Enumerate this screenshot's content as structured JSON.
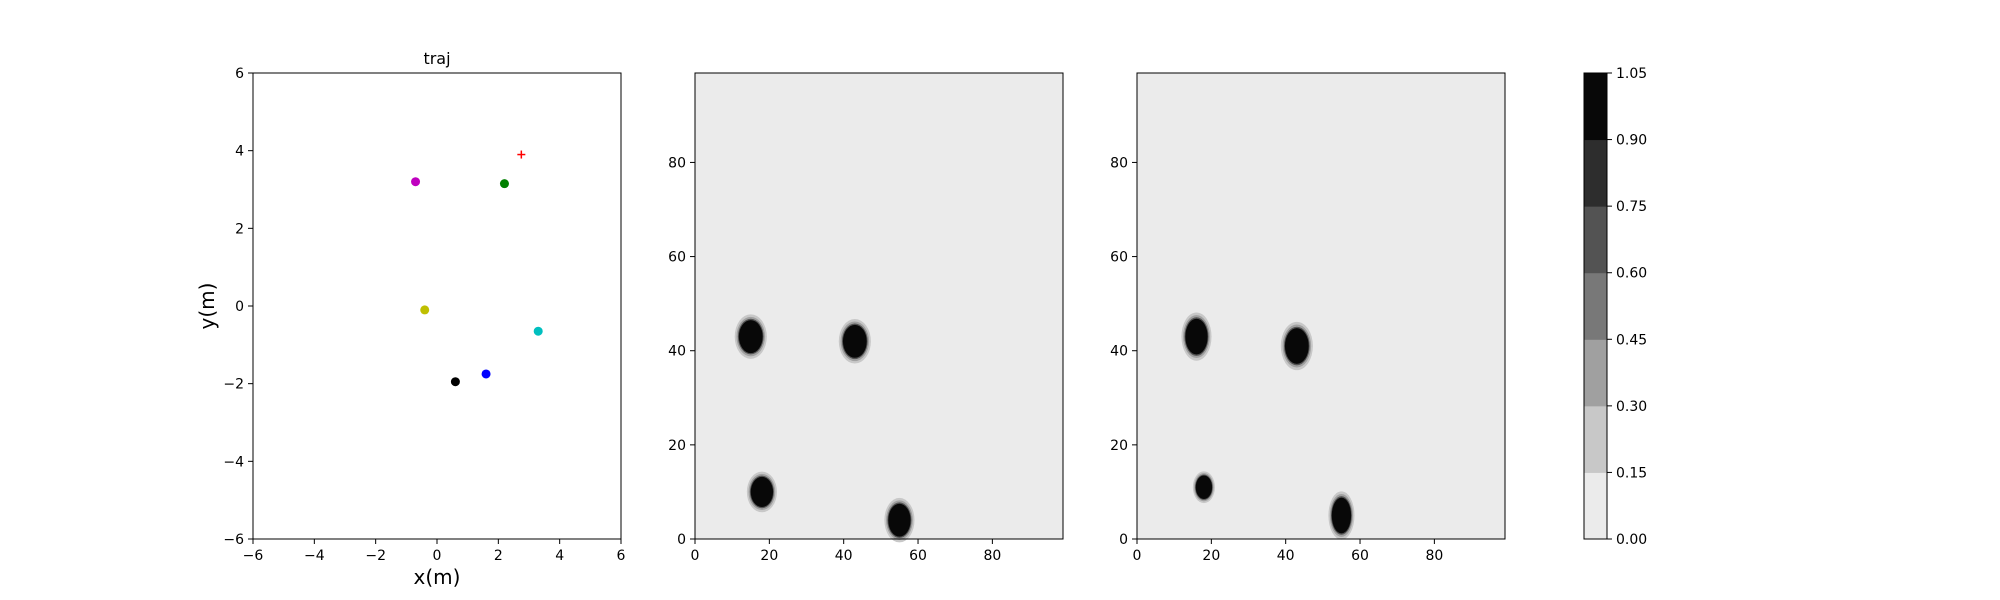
{
  "chart_data": [
    {
      "type": "scatter",
      "title": "traj",
      "xlabel": "x(m)",
      "ylabel": "y(m)",
      "xlim": [
        -6,
        6
      ],
      "ylim": [
        -6,
        6
      ],
      "xticks": [
        "−6",
        "−4",
        "−2",
        "0",
        "2",
        "4",
        "6"
      ],
      "yticks": [
        "−6",
        "−4",
        "−2",
        "0",
        "2",
        "4",
        "6"
      ],
      "grid": false,
      "points": [
        {
          "x": -0.7,
          "y": 3.2,
          "color": "#bf00bf",
          "marker": "circle"
        },
        {
          "x": 2.2,
          "y": 3.15,
          "color": "#008000",
          "marker": "circle"
        },
        {
          "x": -0.4,
          "y": -0.1,
          "color": "#bfbf00",
          "marker": "circle"
        },
        {
          "x": 3.3,
          "y": -0.65,
          "color": "#00bfbf",
          "marker": "circle"
        },
        {
          "x": 1.6,
          "y": -1.75,
          "color": "#0000ff",
          "marker": "circle"
        },
        {
          "x": 0.6,
          "y": -1.95,
          "color": "#000000",
          "marker": "circle"
        },
        {
          "x": 2.75,
          "y": 3.9,
          "color": "#ff0000",
          "marker": "plus"
        }
      ]
    },
    {
      "type": "heatmap",
      "xlim": [
        0,
        99
      ],
      "ylim": [
        0,
        99
      ],
      "xticks": [
        "0",
        "20",
        "40",
        "60",
        "80"
      ],
      "yticks": [
        "0",
        "20",
        "40",
        "60",
        "80"
      ],
      "background_value": 0.08,
      "blobs": [
        {
          "cx": 15,
          "cy": 43,
          "rx": 3.2,
          "ry": 3.5,
          "value": 1.0
        },
        {
          "cx": 43,
          "cy": 42,
          "rx": 3.2,
          "ry": 3.5,
          "value": 1.0
        },
        {
          "cx": 18,
          "cy": 10,
          "rx": 3.0,
          "ry": 3.2,
          "value": 1.0
        },
        {
          "cx": 55,
          "cy": 4,
          "rx": 3.0,
          "ry": 3.5,
          "value": 1.0
        }
      ]
    },
    {
      "type": "heatmap",
      "xlim": [
        0,
        99
      ],
      "ylim": [
        0,
        99
      ],
      "xticks": [
        "0",
        "20",
        "40",
        "60",
        "80"
      ],
      "yticks": [
        "0",
        "20",
        "40",
        "60",
        "80"
      ],
      "background_value": 0.08,
      "blobs": [
        {
          "cx": 16,
          "cy": 43,
          "rx": 3.0,
          "ry": 3.8,
          "value": 1.0
        },
        {
          "cx": 43,
          "cy": 41,
          "rx": 3.2,
          "ry": 3.8,
          "value": 1.0
        },
        {
          "cx": 18,
          "cy": 11,
          "rx": 2.2,
          "ry": 2.5,
          "value": 1.0
        },
        {
          "cx": 55,
          "cy": 5,
          "rx": 2.6,
          "ry": 3.8,
          "value": 1.0
        }
      ]
    }
  ],
  "colorbar": {
    "levels": [
      "0.00",
      "0.15",
      "0.30",
      "0.45",
      "0.60",
      "0.75",
      "0.90",
      "1.05"
    ],
    "colors": [
      "#ebebeb",
      "#c8c8c8",
      "#a0a0a0",
      "#787878",
      "#535353",
      "#2d2d2d",
      "#080808"
    ]
  }
}
